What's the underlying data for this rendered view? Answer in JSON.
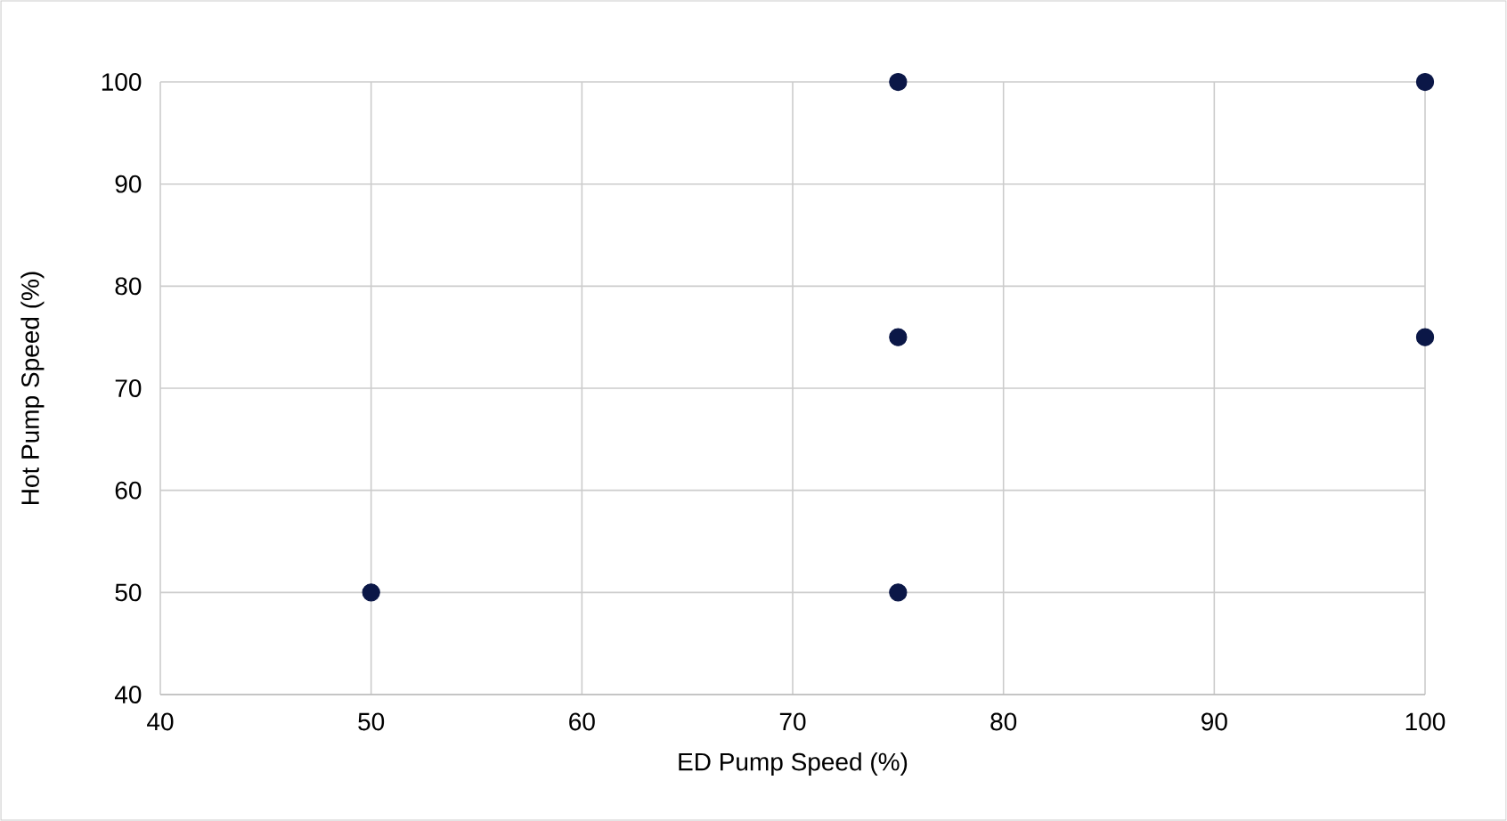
{
  "chart_data": {
    "type": "scatter",
    "xlabel": "ED Pump Speed (%)",
    "ylabel": "Hot Pump Speed (%)",
    "x": [
      50,
      75,
      75,
      75,
      100,
      100
    ],
    "series": [
      {
        "color": "#0b1747",
        "values": [
          50,
          50,
          75,
          100,
          75,
          100
        ]
      }
    ],
    "xlim": [
      40,
      100
    ],
    "xticks": [
      40,
      50,
      60,
      70,
      80,
      90,
      100
    ],
    "ylim": [
      40,
      100
    ],
    "yticks": [
      40,
      50,
      60,
      70,
      80,
      90,
      100
    ],
    "grid": true
  }
}
